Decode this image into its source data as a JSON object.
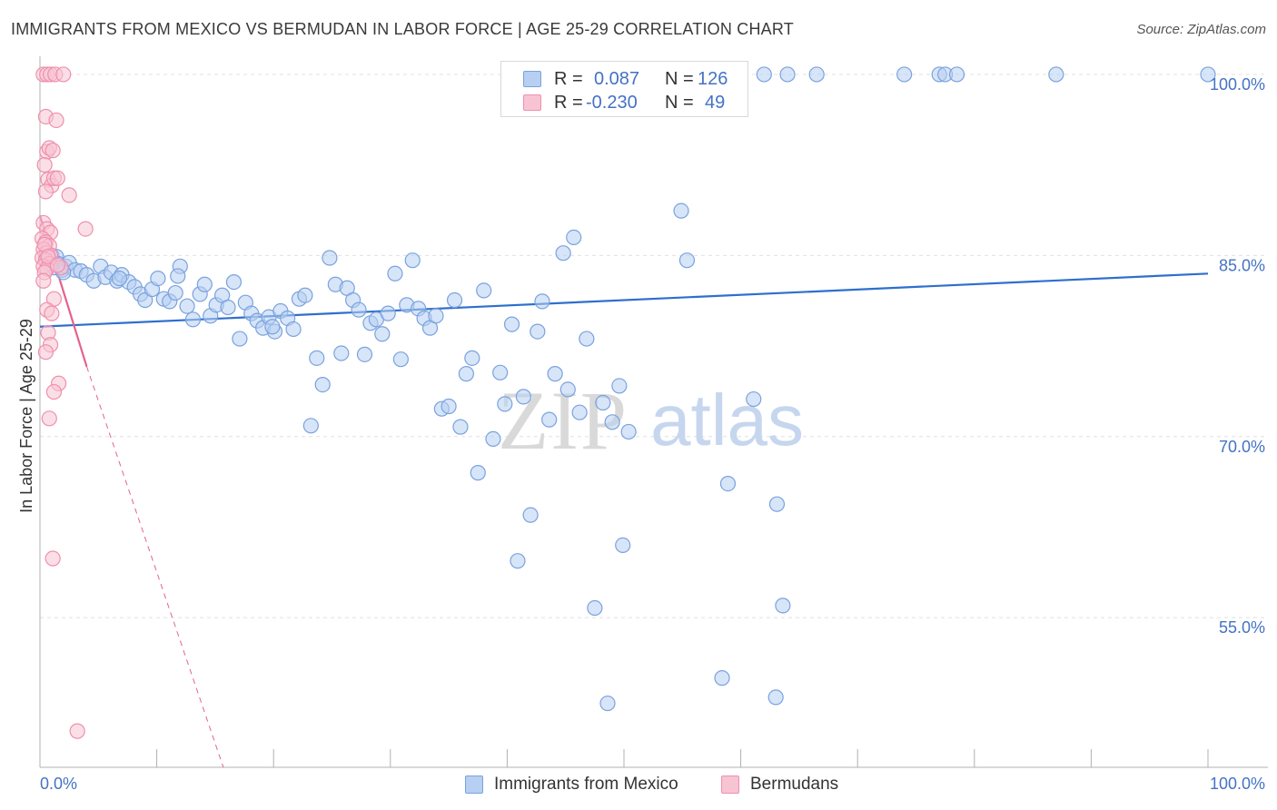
{
  "title": "IMMIGRANTS FROM MEXICO VS BERMUDAN IN LABOR FORCE | AGE 25-29 CORRELATION CHART",
  "source": "Source: ZipAtlas.com",
  "watermark": {
    "zip": "ZIP",
    "atlas": "atlas"
  },
  "colors": {
    "mexico_fill": "#b7cff2",
    "mexico_stroke": "#7aa2de",
    "mexico_line": "#2e6fcd",
    "bermuda_fill": "#f8c4d3",
    "bermuda_stroke": "#ef8fae",
    "bermuda_line": "#e4628d",
    "grid": "#e0e0e0",
    "tick_label": "#4472c4"
  },
  "stats": {
    "rows": [
      {
        "r_label": "R =",
        "r_value": "0.087",
        "n_label": "N =",
        "n_value": "126"
      },
      {
        "r_label": "R =",
        "r_value": "-0.230",
        "n_label": "N =",
        "n_value": "49"
      }
    ]
  },
  "legend": {
    "mexico": "Immigrants from Mexico",
    "bermuda": "Bermudans"
  },
  "chart_data": {
    "type": "scatter",
    "xlabel": "",
    "ylabel": "In Labor Force | Age 25-29",
    "xlim": [
      0,
      100
    ],
    "ylim": [
      42.6,
      101.5
    ],
    "x_tick_labels": [
      "0.0%",
      "100.0%"
    ],
    "y_tick_values": [
      55,
      70,
      85,
      100
    ],
    "y_tick_labels": [
      "55.0%",
      "70.0%",
      "85.0%",
      "100.0%"
    ],
    "grid": true,
    "legend_position": "bottom-center",
    "series": [
      {
        "name": "Immigrants from Mexico",
        "r": 0.087,
        "n": 126,
        "trend": {
          "x": [
            0,
            100
          ],
          "y": [
            79.1,
            83.5
          ]
        },
        "points": [
          [
            0.5,
            84.8
          ],
          [
            0.8,
            84.5
          ],
          [
            1.0,
            85.0
          ],
          [
            1.2,
            84.0
          ],
          [
            1.4,
            84.9
          ],
          [
            1.6,
            84.3
          ],
          [
            1.9,
            83.8
          ],
          [
            2.2,
            84.1
          ],
          [
            2.5,
            84.4
          ],
          [
            3.0,
            83.8
          ],
          [
            3.5,
            83.7
          ],
          [
            4.0,
            83.4
          ],
          [
            4.6,
            82.9
          ],
          [
            5.2,
            84.1
          ],
          [
            5.6,
            83.2
          ],
          [
            6.1,
            83.6
          ],
          [
            6.6,
            82.9
          ],
          [
            7.0,
            83.4
          ],
          [
            7.6,
            82.8
          ],
          [
            8.1,
            82.4
          ],
          [
            8.6,
            81.8
          ],
          [
            9.0,
            81.3
          ],
          [
            9.6,
            82.2
          ],
          [
            10.1,
            83.1
          ],
          [
            10.6,
            81.4
          ],
          [
            11.1,
            81.2
          ],
          [
            11.6,
            81.9
          ],
          [
            12.0,
            84.1
          ],
          [
            12.6,
            80.8
          ],
          [
            13.1,
            79.7
          ],
          [
            13.7,
            81.8
          ],
          [
            14.1,
            82.6
          ],
          [
            14.6,
            80.0
          ],
          [
            15.1,
            80.9
          ],
          [
            15.6,
            81.7
          ],
          [
            16.1,
            80.7
          ],
          [
            16.6,
            82.8
          ],
          [
            17.1,
            78.1
          ],
          [
            17.6,
            81.1
          ],
          [
            18.1,
            80.2
          ],
          [
            18.6,
            79.6
          ],
          [
            19.1,
            79.0
          ],
          [
            19.6,
            79.9
          ],
          [
            20.1,
            78.7
          ],
          [
            20.6,
            80.4
          ],
          [
            21.2,
            79.8
          ],
          [
            21.7,
            78.9
          ],
          [
            22.2,
            81.4
          ],
          [
            22.7,
            81.7
          ],
          [
            23.2,
            70.9
          ],
          [
            23.7,
            76.5
          ],
          [
            24.2,
            74.3
          ],
          [
            24.8,
            84.8
          ],
          [
            25.3,
            82.6
          ],
          [
            25.8,
            76.9
          ],
          [
            26.3,
            82.3
          ],
          [
            26.8,
            81.3
          ],
          [
            27.3,
            80.5
          ],
          [
            27.8,
            76.8
          ],
          [
            28.3,
            79.4
          ],
          [
            28.8,
            79.7
          ],
          [
            29.3,
            78.5
          ],
          [
            29.8,
            80.2
          ],
          [
            30.4,
            83.5
          ],
          [
            30.9,
            76.4
          ],
          [
            31.4,
            80.9
          ],
          [
            31.9,
            84.6
          ],
          [
            32.4,
            80.6
          ],
          [
            32.9,
            79.8
          ],
          [
            33.4,
            79.0
          ],
          [
            33.9,
            80.0
          ],
          [
            34.4,
            72.3
          ],
          [
            35.0,
            72.5
          ],
          [
            35.5,
            81.3
          ],
          [
            36.0,
            70.8
          ],
          [
            36.5,
            75.2
          ],
          [
            37.0,
            76.5
          ],
          [
            37.5,
            67.0
          ],
          [
            38.0,
            82.1
          ],
          [
            38.8,
            69.8
          ],
          [
            39.4,
            75.3
          ],
          [
            39.8,
            72.7
          ],
          [
            40.4,
            79.3
          ],
          [
            40.9,
            59.7
          ],
          [
            41.4,
            73.3
          ],
          [
            42.0,
            63.5
          ],
          [
            42.6,
            78.7
          ],
          [
            43.0,
            81.2
          ],
          [
            43.6,
            71.4
          ],
          [
            44.1,
            75.2
          ],
          [
            44.8,
            85.2
          ],
          [
            45.2,
            73.9
          ],
          [
            45.7,
            86.5
          ],
          [
            46.2,
            72.0
          ],
          [
            46.8,
            78.1
          ],
          [
            47.5,
            55.8
          ],
          [
            48.2,
            72.8
          ],
          [
            48.6,
            47.9
          ],
          [
            49.0,
            71.2
          ],
          [
            49.6,
            74.2
          ],
          [
            49.9,
            61.0
          ],
          [
            50.4,
            70.4
          ],
          [
            54.9,
            88.7
          ],
          [
            55.4,
            84.6
          ],
          [
            58.4,
            50.0
          ],
          [
            58.9,
            66.1
          ],
          [
            61.1,
            73.1
          ],
          [
            63.0,
            48.4
          ],
          [
            63.1,
            64.4
          ],
          [
            63.6,
            56.0
          ],
          [
            52.5,
            100.0
          ],
          [
            53.0,
            100.0
          ],
          [
            57.0,
            100.0
          ],
          [
            62.0,
            100.0
          ],
          [
            64.0,
            100.0
          ],
          [
            66.5,
            100.0
          ],
          [
            74.0,
            100.0
          ],
          [
            77.0,
            100.0
          ],
          [
            77.5,
            100.0
          ],
          [
            78.5,
            100.0
          ],
          [
            87.0,
            100.0
          ],
          [
            100.0,
            100.0
          ],
          [
            2.0,
            83.6
          ],
          [
            6.8,
            83.1
          ],
          [
            11.8,
            83.3
          ],
          [
            19.9,
            79.1
          ]
        ]
      },
      {
        "name": "Bermudans",
        "r": -0.23,
        "n": 49,
        "trend": {
          "x": [
            0,
            4.0
          ],
          "y": [
            88.3,
            75.8
          ]
        },
        "trend_extension": {
          "x": [
            4.0,
            15.7
          ],
          "y": [
            75.8,
            42.6
          ]
        },
        "points": [
          [
            0.3,
            100.0
          ],
          [
            0.6,
            100.0
          ],
          [
            0.9,
            100.0
          ],
          [
            1.3,
            100.0
          ],
          [
            2.0,
            100.0
          ],
          [
            0.5,
            96.5
          ],
          [
            1.4,
            96.2
          ],
          [
            0.6,
            93.6
          ],
          [
            0.8,
            93.9
          ],
          [
            1.1,
            93.7
          ],
          [
            0.4,
            92.5
          ],
          [
            0.7,
            91.3
          ],
          [
            1.0,
            90.8
          ],
          [
            1.2,
            91.4
          ],
          [
            1.5,
            91.4
          ],
          [
            0.5,
            90.3
          ],
          [
            2.5,
            90.0
          ],
          [
            0.3,
            87.7
          ],
          [
            0.6,
            87.2
          ],
          [
            0.9,
            86.9
          ],
          [
            0.2,
            86.4
          ],
          [
            0.5,
            86.1
          ],
          [
            0.8,
            85.8
          ],
          [
            0.3,
            85.5
          ],
          [
            0.6,
            85.2
          ],
          [
            0.9,
            85.0
          ],
          [
            0.2,
            84.8
          ],
          [
            0.5,
            84.6
          ],
          [
            0.8,
            84.3
          ],
          [
            0.3,
            84.1
          ],
          [
            0.6,
            83.9
          ],
          [
            0.4,
            83.6
          ],
          [
            3.9,
            87.2
          ],
          [
            1.2,
            81.4
          ],
          [
            0.6,
            80.5
          ],
          [
            1.0,
            80.2
          ],
          [
            0.7,
            78.6
          ],
          [
            0.9,
            77.6
          ],
          [
            0.5,
            77.0
          ],
          [
            1.6,
            74.4
          ],
          [
            1.2,
            73.7
          ],
          [
            0.8,
            71.5
          ],
          [
            1.1,
            59.9
          ],
          [
            3.2,
            45.6
          ],
          [
            1.8,
            84.0
          ],
          [
            0.4,
            85.9
          ],
          [
            0.7,
            84.9
          ],
          [
            1.5,
            84.2
          ],
          [
            0.3,
            82.9
          ]
        ]
      }
    ]
  }
}
